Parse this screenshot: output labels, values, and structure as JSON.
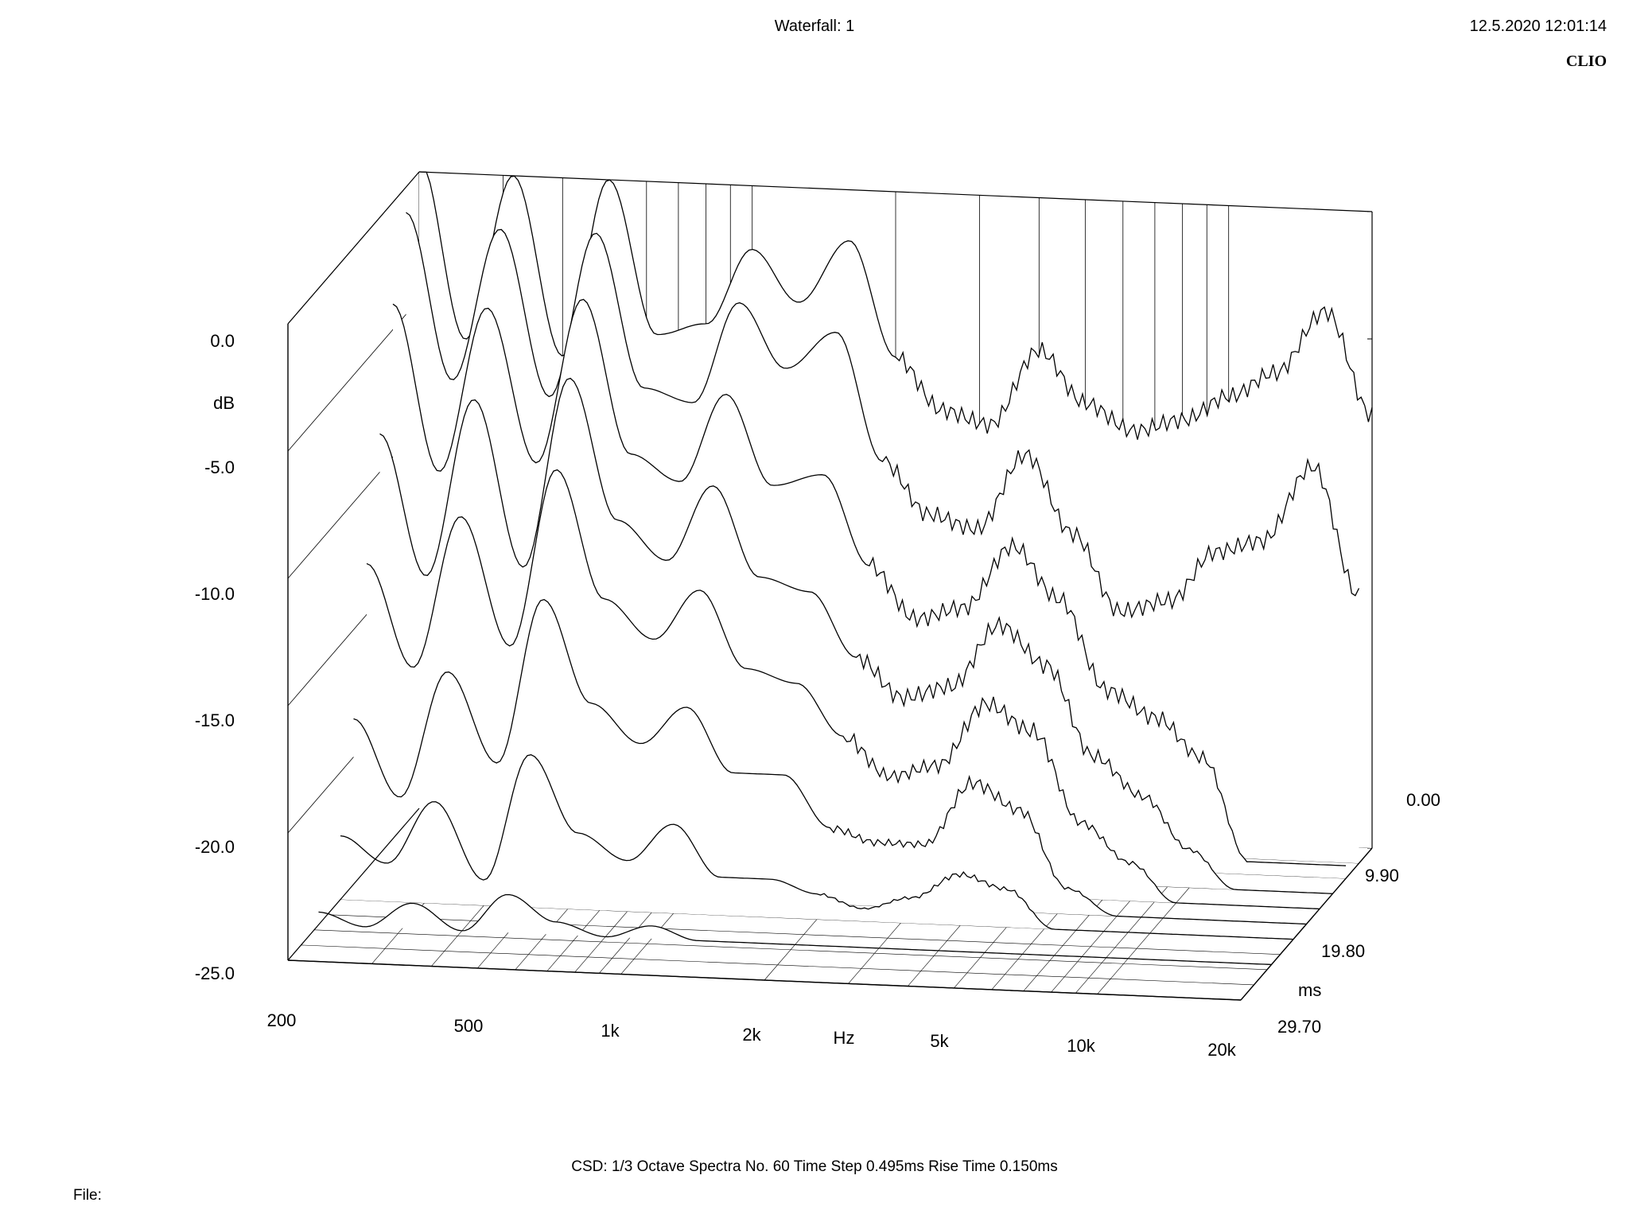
{
  "header": {
    "title": "Waterfall: 1",
    "timestamp": "12.5.2020 12:01:14",
    "brand": "CLIO"
  },
  "footer": {
    "info": "CSD:   1/3 Octave   Spectra No. 60   Time Step 0.495ms   Rise Time 0.150ms",
    "file_label": "File:"
  },
  "chart_data": {
    "type": "waterfall",
    "title": "Waterfall: 1",
    "ylabel": "dB",
    "xlabel": "Hz",
    "zlabel": "ms",
    "ylim": [
      -25,
      0
    ],
    "xlim": [
      200,
      20000
    ],
    "x_scale": "log",
    "zlim": [
      0,
      29.7
    ],
    "y_ticks": [
      "0.0",
      "-5.0",
      "-10.0",
      "-15.0",
      "-20.0",
      "-25.0"
    ],
    "x_ticks": [
      "200",
      "500",
      "1k",
      "2k",
      "5k",
      "10k",
      "20k"
    ],
    "z_ticks": [
      "0.00",
      "9.90",
      "19.80",
      "29.70"
    ],
    "spectra_count": 60,
    "time_step_ms": 0.495,
    "frequencies_hz": [
      200,
      250,
      315,
      400,
      500,
      630,
      800,
      1000,
      1250,
      1600,
      2000,
      2500,
      3150,
      4000,
      5000,
      6300,
      8000,
      10000,
      12500,
      16000,
      20000
    ],
    "series": [
      {
        "time_ms": 0.0,
        "values": [
          0.5,
          -6.5,
          0.0,
          -7.0,
          0.0,
          -6.0,
          -5.5,
          -2.5,
          -4.5,
          -2.0,
          -6.5,
          -8.5,
          -9.0,
          -6.0,
          -8.0,
          -9.0,
          -8.5,
          -7.5,
          -6.5,
          -4.0,
          -8.0
        ]
      },
      {
        "time_ms": 2.97,
        "values": [
          -1.0,
          -7.5,
          -1.5,
          -8.0,
          -1.5,
          -7.5,
          -8.0,
          -4.0,
          -6.5,
          -5.0,
          -10.0,
          -12.0,
          -12.5,
          -9.5,
          -12.5,
          -15.5,
          -15.0,
          -13.0,
          -12.5,
          -9.5,
          -14.5
        ]
      },
      {
        "time_ms": 5.94,
        "values": [
          -4.0,
          -10.5,
          -4.0,
          -10.0,
          -3.5,
          -9.5,
          -10.5,
          -7.0,
          -10.5,
          -10.0,
          -13.5,
          -15.5,
          -15.0,
          -12.5,
          -14.5,
          -18.0,
          -19.0,
          -20.5,
          -24.5,
          -24.5,
          -24.5
        ]
      },
      {
        "time_ms": 8.91,
        "values": [
          -8.5,
          -14.0,
          -7.0,
          -13.5,
          -6.0,
          -11.5,
          -13.0,
          -10.0,
          -13.5,
          -14.0,
          -16.5,
          -18.0,
          -17.5,
          -15.0,
          -16.5,
          -20.0,
          -21.5,
          -23.5,
          -25.0,
          -25.0,
          -25.0
        ]
      },
      {
        "time_ms": 11.88,
        "values": [
          -13.0,
          -17.0,
          -11.0,
          -16.0,
          -9.0,
          -14.0,
          -15.5,
          -13.5,
          -16.5,
          -17.0,
          -19.0,
          -20.5,
          -20.0,
          -17.5,
          -18.5,
          -22.0,
          -23.5,
          -25.0,
          -25.0,
          -25.0,
          -25.0
        ]
      },
      {
        "time_ms": 14.85,
        "values": [
          -18.5,
          -21.5,
          -16.5,
          -20.0,
          -13.5,
          -17.5,
          -19.0,
          -17.5,
          -20.0,
          -20.0,
          -22.0,
          -22.5,
          -22.5,
          -20.0,
          -21.0,
          -24.0,
          -25.0,
          -25.0,
          -25.0,
          -25.0,
          -25.0
        ]
      },
      {
        "time_ms": 17.82,
        "values": [
          -22.5,
          -23.5,
          -21.0,
          -24.0,
          -19.0,
          -22.0,
          -23.0,
          -21.5,
          -23.5,
          -23.5,
          -24.0,
          -24.5,
          -24.0,
          -23.0,
          -23.5,
          -25.0,
          -25.0,
          -25.0,
          -25.0,
          -25.0,
          -25.0
        ]
      },
      {
        "time_ms": 22.77,
        "values": [
          -24.5,
          -25.0,
          -24.0,
          -25.0,
          -23.5,
          -24.5,
          -25.0,
          -24.5,
          -25.0,
          -25.0,
          -25.0,
          -25.0,
          -25.0,
          -25.0,
          -25.0,
          -25.0,
          -25.0,
          -25.0,
          -25.0,
          -25.0,
          -25.0
        ]
      },
      {
        "time_ms": 29.7,
        "values": [
          -25.0,
          -25.0,
          -25.0,
          -25.0,
          -25.0,
          -25.0,
          -25.0,
          -25.0,
          -25.0,
          -25.0,
          -25.0,
          -25.0,
          -25.0,
          -25.0,
          -25.0,
          -25.0,
          -25.0,
          -25.0,
          -25.0,
          -25.0,
          -25.0
        ]
      }
    ],
    "grid": true,
    "legend": "none"
  }
}
